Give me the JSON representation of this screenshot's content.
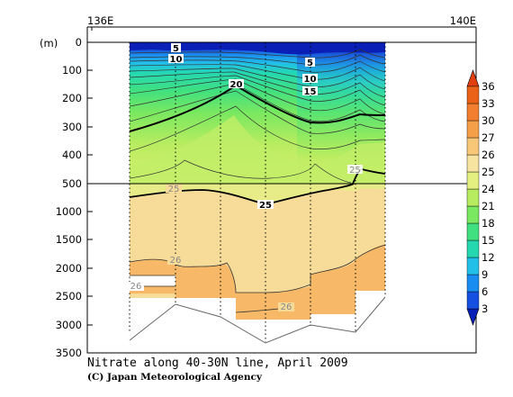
{
  "chart_data": {
    "type": "heatmap",
    "title": "Nitrate along 40-30N line, April 2009",
    "credit": "(C) Japan Meteorological Agency",
    "x_ticks": [
      "136E",
      "140E"
    ],
    "y_unit": "(m)",
    "y_ticks_upper": [
      "0",
      "100",
      "200",
      "300",
      "400",
      "500"
    ],
    "y_ticks_lower": [
      "1000",
      "1500",
      "2000",
      "2500",
      "3000",
      "3500"
    ],
    "colorbar_levels": [
      "3",
      "6",
      "9",
      "12",
      "15",
      "18",
      "21",
      "24",
      "25",
      "26",
      "27",
      "30",
      "33",
      "36"
    ],
    "colorbar_colors": [
      "#0a1fb5",
      "#1550e0",
      "#1a8ef0",
      "#22c0e8",
      "#25d8b0",
      "#40e080",
      "#7ae860",
      "#b8ec60",
      "#e4f080",
      "#f6e4a0",
      "#f8c878",
      "#f5a048",
      "#f27f30",
      "#ea6218",
      "#e04010"
    ],
    "contour_labels": [
      "5",
      "10",
      "5",
      "10",
      "15",
      "20",
      "25",
      "25",
      "25",
      "26",
      "26",
      "26",
      "26"
    ],
    "station_count": 7
  }
}
